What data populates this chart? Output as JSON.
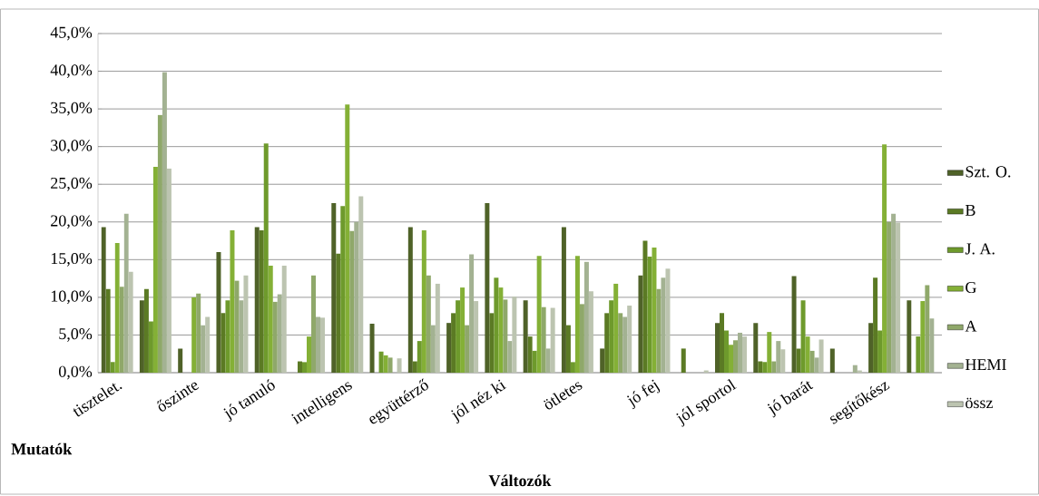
{
  "chart_data": {
    "type": "bar",
    "xlabel": "Változók",
    "annotations": [
      "Mutatók"
    ],
    "categories": [
      "tisztelet.",
      null,
      "őszinte",
      null,
      "jó tanuló",
      null,
      "intelligens",
      null,
      "együttérző",
      null,
      "jól néz ki",
      null,
      "ötletes",
      null,
      "jó fej",
      null,
      "jól sportol",
      null,
      "jó barát",
      null,
      "segítőkész",
      null
    ],
    "series": [
      {
        "name": "Szt. O.",
        "color": "#4f6228",
        "values": [
          19.3,
          9.6,
          3.2,
          16.0,
          19.3,
          0,
          22.5,
          6.5,
          19.3,
          6.6,
          22.5,
          9.6,
          19.3,
          3.2,
          12.9,
          0,
          6.6,
          6.6,
          12.8,
          3.2,
          6.6,
          9.6
        ]
      },
      {
        "name": "B",
        "color": "#5b7a24",
        "values": [
          11.1,
          11.1,
          0,
          7.9,
          18.9,
          1.5,
          15.8,
          0,
          1.5,
          7.9,
          7.9,
          4.8,
          6.3,
          7.9,
          17.5,
          3.2,
          7.9,
          1.5,
          3.2,
          0,
          12.6,
          0
        ]
      },
      {
        "name": "J. A.",
        "color": "#6e9a2c",
        "values": [
          1.4,
          6.8,
          0,
          9.6,
          30.4,
          1.4,
          22.1,
          2.8,
          4.2,
          9.6,
          12.6,
          2.9,
          1.4,
          9.6,
          15.4,
          0,
          5.6,
          1.4,
          9.6,
          0,
          5.6,
          4.8
        ]
      },
      {
        "name": "G",
        "color": "#84b036",
        "values": [
          17.2,
          27.3,
          10.0,
          18.9,
          14.2,
          4.8,
          35.6,
          2.3,
          18.9,
          11.3,
          11.3,
          15.5,
          15.5,
          11.8,
          16.6,
          0,
          3.7,
          5.4,
          4.8,
          0,
          30.3,
          9.5
        ]
      },
      {
        "name": "A",
        "color": "#8fa86a",
        "values": [
          11.4,
          34.2,
          10.5,
          12.2,
          9.4,
          12.9,
          18.8,
          2.0,
          12.9,
          6.3,
          9.7,
          8.7,
          9.1,
          7.9,
          11.1,
          0,
          4.3,
          1.5,
          2.9,
          0,
          20.0,
          11.6
        ]
      },
      {
        "name": "HEMI",
        "color": "#a3b292",
        "values": [
          21.1,
          39.9,
          6.3,
          9.6,
          10.4,
          7.4,
          20.0,
          0,
          6.3,
          15.7,
          4.2,
          3.2,
          14.7,
          7.4,
          12.6,
          0,
          5.3,
          4.2,
          2.0,
          1.0,
          21.1,
          7.2
        ]
      },
      {
        "name": "össz",
        "color": "#bcc4b0",
        "values": [
          13.4,
          27.1,
          7.4,
          12.9,
          14.2,
          7.3,
          23.4,
          1.9,
          11.8,
          9.5,
          10.1,
          8.6,
          10.8,
          8.9,
          13.8,
          0.3,
          4.8,
          3.1,
          4.4,
          0.3,
          19.9,
          0
        ]
      }
    ],
    "ylim": [
      0,
      45
    ],
    "yticks": [
      {
        "value": 0,
        "label": "0,0%"
      },
      {
        "value": 5,
        "label": "5,0%"
      },
      {
        "value": 10,
        "label": "10,0%"
      },
      {
        "value": 15,
        "label": "15,0%"
      },
      {
        "value": 20,
        "label": "20,0%"
      },
      {
        "value": 25,
        "label": "25,0%"
      },
      {
        "value": 30,
        "label": "30,0%"
      },
      {
        "value": 35,
        "label": "35,0%"
      },
      {
        "value": 40,
        "label": "40,0%"
      },
      {
        "value": 45,
        "label": "45,0%"
      }
    ],
    "grid": "y",
    "legend": "right"
  }
}
